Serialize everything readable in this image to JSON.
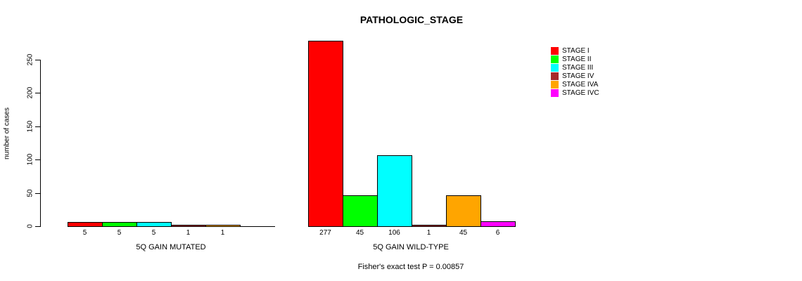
{
  "chart_data": {
    "type": "bar",
    "title": "PATHOLOGIC_STAGE",
    "ylabel": "number of cases",
    "xlabel": "",
    "ylim": [
      0,
      250
    ],
    "yticks": [
      0,
      50,
      100,
      150,
      200,
      250
    ],
    "grid": false,
    "legend_position": "right",
    "categories": [
      "STAGE I",
      "STAGE II",
      "STAGE III",
      "STAGE IV",
      "STAGE IVA",
      "STAGE IVC"
    ],
    "colors": [
      "#FF0000",
      "#00FF00",
      "#00FFFF",
      "#A52A2A",
      "#FFA500",
      "#FF00FF"
    ],
    "series": [
      {
        "name": "5Q GAIN MUTATED",
        "values": [
          5,
          5,
          5,
          1,
          1,
          0
        ],
        "labels": [
          "5",
          "5",
          "5",
          "1",
          "1",
          ""
        ]
      },
      {
        "name": "5Q GAIN WILD-TYPE",
        "values": [
          277,
          45,
          106,
          1,
          45,
          6
        ],
        "labels": [
          "277",
          "45",
          "106",
          "1",
          "45",
          "6"
        ]
      }
    ],
    "annotation": "Fisher's exact test P = 0.00857"
  }
}
